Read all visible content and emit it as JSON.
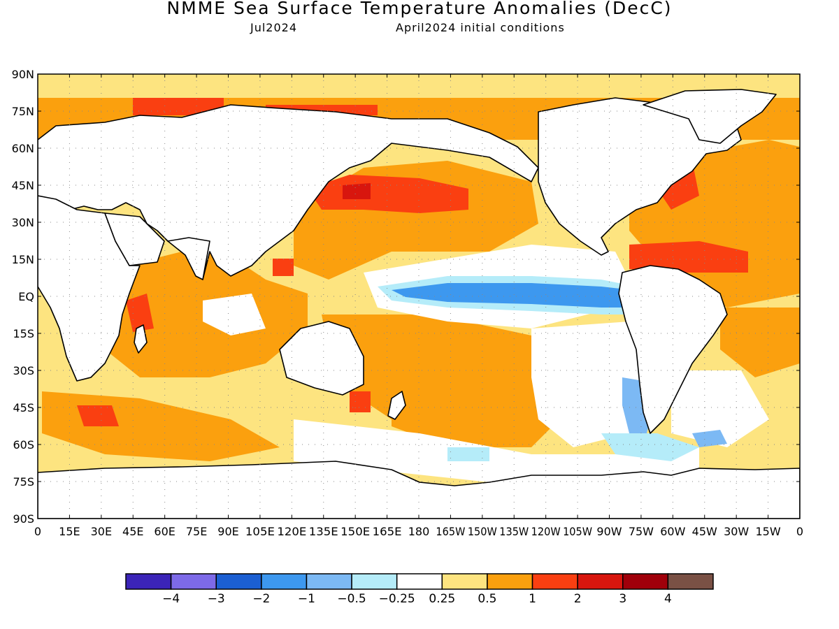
{
  "title": "NMME Sea Surface Temperature Anomalies (DecC)",
  "forecast_month": "Jul2024",
  "initial_conditions": "April2024 initial conditions",
  "map": {
    "lat_ticks": [
      "90N",
      "75N",
      "60N",
      "45N",
      "30N",
      "15N",
      "EQ",
      "15S",
      "30S",
      "45S",
      "60S",
      "75S",
      "90S"
    ],
    "lon_ticks": [
      "0",
      "15E",
      "30E",
      "45E",
      "60E",
      "75E",
      "90E",
      "105E",
      "120E",
      "135E",
      "150E",
      "165E",
      "180",
      "165W",
      "150W",
      "135W",
      "120W",
      "105W",
      "90W",
      "75W",
      "60W",
      "45W",
      "30W",
      "15W",
      "0"
    ],
    "lon_range": [
      0,
      360
    ],
    "lat_range": [
      -90,
      90
    ],
    "grid": "dotted",
    "land_color": "#ffffff",
    "coastline_color": "#000000"
  },
  "legend": {
    "colors": [
      "#3b24b8",
      "#7d6ae8",
      "#1b5fd2",
      "#3d98ef",
      "#7cb9f4",
      "#b5ecf9",
      "#ffffff",
      "#fde480",
      "#fba00e",
      "#fa3f11",
      "#d8160e",
      "#a0000a",
      "#7a5145"
    ],
    "labels": [
      "−4",
      "−3",
      "−2",
      "−1",
      "−0.5",
      "−0.25",
      "0.25",
      "0.5",
      "1",
      "2",
      "3",
      "4"
    ]
  }
}
